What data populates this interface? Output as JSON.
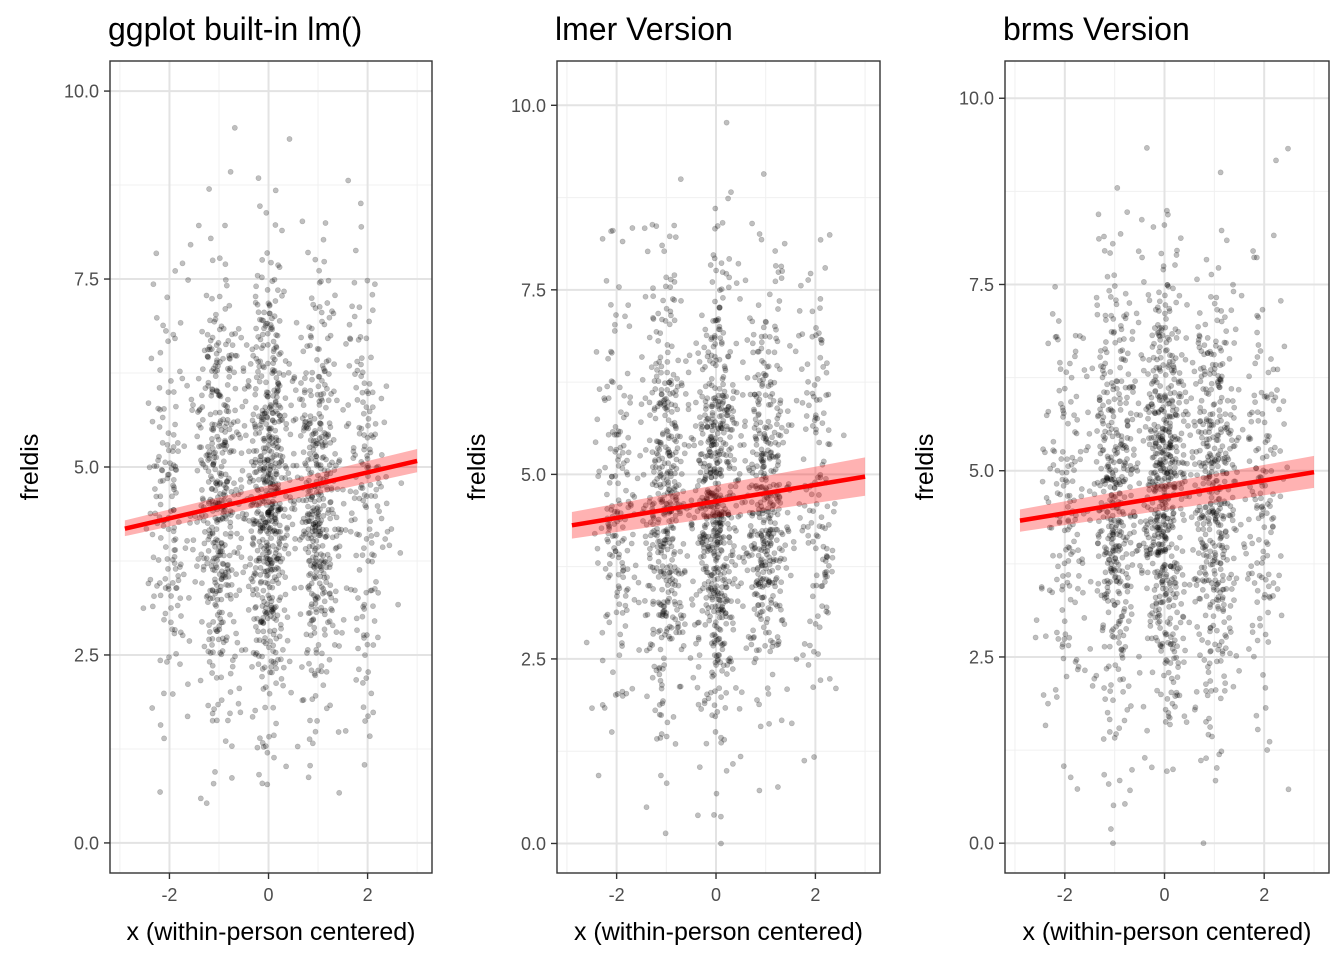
{
  "chart_data": [
    {
      "type": "scatter",
      "title": "ggplot built-in lm()",
      "xlabel": "x (within-person centered)",
      "ylabel": "freldis",
      "xlim": [
        -3.2,
        3.3
      ],
      "ylim": [
        -0.4,
        10.4
      ],
      "xticks": [
        -2,
        0,
        2
      ],
      "xtick_labels": [
        "-2",
        "0",
        "2"
      ],
      "yticks": [
        0,
        2.5,
        5,
        7.5,
        10
      ],
      "ytick_labels": [
        "0.0",
        "2.5",
        "5.0",
        "7.5",
        "10.0"
      ],
      "grid": true,
      "points": {
        "n": 1800,
        "seed": 11,
        "x_clusters": [
          -2,
          -1,
          0,
          1,
          2
        ],
        "x_cluster_weights": [
          0.09,
          0.24,
          0.34,
          0.24,
          0.09
        ],
        "y_mean": 4.6,
        "y_sd": 1.45,
        "color": "#000000",
        "opacity": 0.25
      },
      "fit": {
        "x": [
          -2.9,
          3.0
        ],
        "y": [
          4.18,
          5.08
        ],
        "ci_low": [
          4.08,
          4.93
        ],
        "ci_high": [
          4.29,
          5.24
        ]
      },
      "fit_color": "#ff0000"
    },
    {
      "type": "scatter",
      "title": "lmer Version",
      "xlabel": "x (within-person centered)",
      "ylabel": "freldis",
      "xlim": [
        -3.2,
        3.3
      ],
      "ylim": [
        -0.4,
        10.6
      ],
      "xticks": [
        -2,
        0,
        2
      ],
      "xtick_labels": [
        "-2",
        "0",
        "2"
      ],
      "yticks": [
        0,
        2.5,
        5,
        7.5,
        10
      ],
      "ytick_labels": [
        "0.0",
        "2.5",
        "5.0",
        "7.5",
        "10.0"
      ],
      "grid": true,
      "points": {
        "n": 1800,
        "seed": 23,
        "x_clusters": [
          -2,
          -1,
          0,
          1,
          2
        ],
        "x_cluster_weights": [
          0.09,
          0.24,
          0.34,
          0.24,
          0.09
        ],
        "y_mean": 4.6,
        "y_sd": 1.45,
        "color": "#000000",
        "opacity": 0.25
      },
      "fit": {
        "x": [
          -2.9,
          3.0
        ],
        "y": [
          4.31,
          4.97
        ],
        "ci_low": [
          4.13,
          4.71
        ],
        "ci_high": [
          4.49,
          5.23
        ]
      },
      "fit_color": "#ff0000"
    },
    {
      "type": "scatter",
      "title": "brms Version",
      "xlabel": "x (within-person centered)",
      "ylabel": "freldis",
      "xlim": [
        -3.2,
        3.3
      ],
      "ylim": [
        -0.4,
        10.5
      ],
      "xticks": [
        -2,
        0,
        2
      ],
      "xtick_labels": [
        "-2",
        "0",
        "2"
      ],
      "yticks": [
        0,
        2.5,
        5,
        7.5,
        10
      ],
      "ytick_labels": [
        "0.0",
        "2.5",
        "5.0",
        "7.5",
        "10.0"
      ],
      "grid": true,
      "points": {
        "n": 1800,
        "seed": 37,
        "x_clusters": [
          -2,
          -1,
          0,
          1,
          2
        ],
        "x_cluster_weights": [
          0.09,
          0.24,
          0.34,
          0.24,
          0.09
        ],
        "y_mean": 4.6,
        "y_sd": 1.45,
        "color": "#000000",
        "opacity": 0.25
      },
      "fit": {
        "x": [
          -2.9,
          3.0
        ],
        "y": [
          4.33,
          4.98
        ],
        "ci_low": [
          4.18,
          4.77
        ],
        "ci_high": [
          4.48,
          5.2
        ]
      },
      "fit_color": "#ff0000"
    }
  ]
}
